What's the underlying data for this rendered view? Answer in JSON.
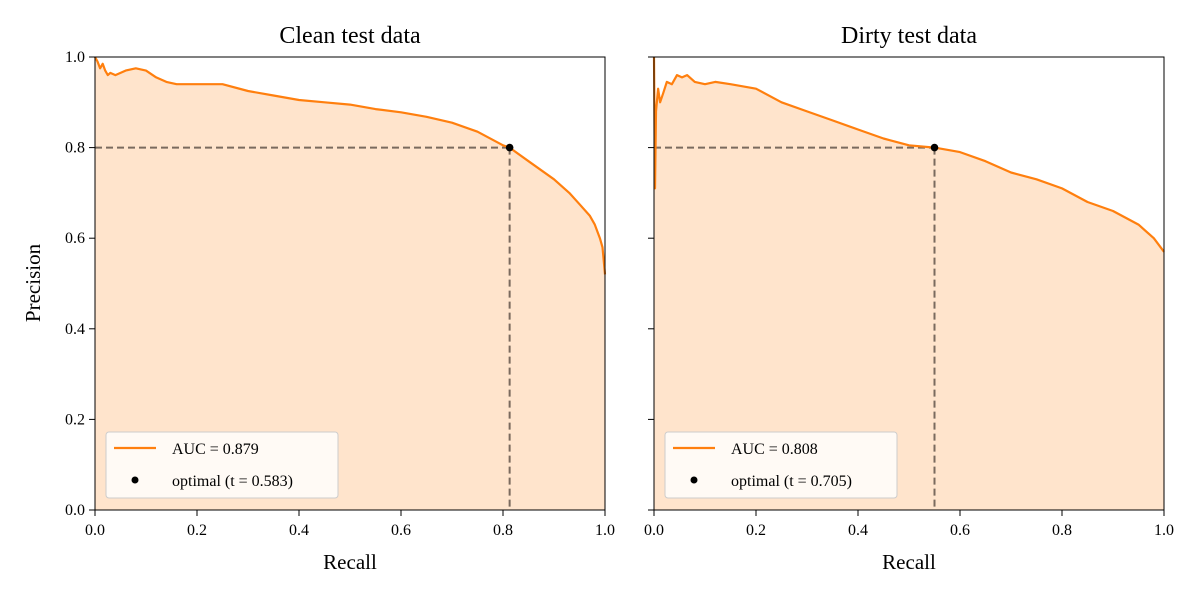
{
  "colors": {
    "curve": "#ff7f0e",
    "fill": "#ffe4cc",
    "guide": "#7a6a5e",
    "point": "#000000"
  },
  "chart_data": [
    {
      "type": "area",
      "title": "Clean test data",
      "xlabel": "Recall",
      "ylabel": "Precision",
      "xlim": [
        0,
        1
      ],
      "ylim": [
        0,
        1
      ],
      "xticks": [
        "0.0",
        "0.2",
        "0.4",
        "0.6",
        "0.8",
        "1.0"
      ],
      "yticks": [
        "0.0",
        "0.2",
        "0.4",
        "0.6",
        "0.8",
        "1.0"
      ],
      "legend_position": "lower-left",
      "grid": false,
      "series": [
        {
          "name": "AUC = 0.879",
          "x": [
            0.0,
            0.005,
            0.01,
            0.015,
            0.02,
            0.025,
            0.03,
            0.04,
            0.05,
            0.06,
            0.08,
            0.1,
            0.12,
            0.14,
            0.16,
            0.2,
            0.25,
            0.3,
            0.35,
            0.4,
            0.45,
            0.5,
            0.55,
            0.6,
            0.65,
            0.7,
            0.75,
            0.8,
            0.813,
            0.85,
            0.9,
            0.93,
            0.95,
            0.97,
            0.98,
            0.99,
            0.995,
            1.0
          ],
          "y": [
            1.0,
            0.99,
            0.975,
            0.985,
            0.97,
            0.96,
            0.965,
            0.96,
            0.965,
            0.97,
            0.975,
            0.97,
            0.955,
            0.945,
            0.94,
            0.94,
            0.94,
            0.925,
            0.915,
            0.905,
            0.9,
            0.895,
            0.885,
            0.878,
            0.868,
            0.855,
            0.835,
            0.805,
            0.8,
            0.77,
            0.73,
            0.7,
            0.675,
            0.65,
            0.63,
            0.6,
            0.58,
            0.52
          ]
        }
      ],
      "optimal_point": {
        "label": "optimal (t = 0.583)",
        "x": 0.813,
        "y": 0.8
      }
    },
    {
      "type": "area",
      "title": "Dirty test data",
      "xlabel": "Recall",
      "ylabel": "",
      "xlim": [
        0,
        1
      ],
      "ylim": [
        0,
        1
      ],
      "xticks": [
        "0.0",
        "0.2",
        "0.4",
        "0.6",
        "0.8",
        "1.0"
      ],
      "yticks": [
        "",
        "",
        "",
        "",
        "",
        ""
      ],
      "legend_position": "lower-left",
      "grid": false,
      "series": [
        {
          "name": "AUC = 0.808",
          "x": [
            0.0,
            0.002,
            0.004,
            0.008,
            0.012,
            0.018,
            0.025,
            0.035,
            0.045,
            0.055,
            0.065,
            0.08,
            0.1,
            0.12,
            0.15,
            0.2,
            0.25,
            0.3,
            0.35,
            0.4,
            0.45,
            0.5,
            0.55,
            0.6,
            0.65,
            0.7,
            0.75,
            0.8,
            0.85,
            0.9,
            0.95,
            0.98,
            1.0
          ],
          "y": [
            1.0,
            0.71,
            0.88,
            0.93,
            0.9,
            0.92,
            0.945,
            0.94,
            0.96,
            0.955,
            0.96,
            0.945,
            0.94,
            0.945,
            0.94,
            0.93,
            0.9,
            0.88,
            0.86,
            0.84,
            0.82,
            0.805,
            0.8,
            0.79,
            0.77,
            0.745,
            0.73,
            0.71,
            0.68,
            0.66,
            0.63,
            0.6,
            0.57
          ]
        }
      ],
      "optimal_point": {
        "label": "optimal (t = 0.705)",
        "x": 0.55,
        "y": 0.8
      }
    }
  ]
}
